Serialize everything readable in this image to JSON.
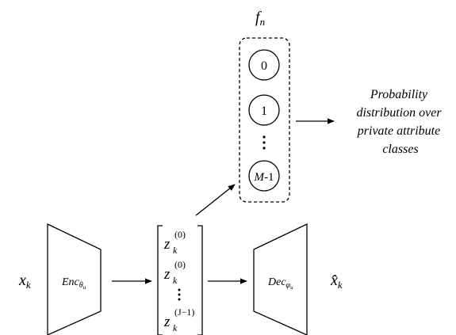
{
  "header": {
    "base": "f",
    "sub": "n"
  },
  "classifier": {
    "nodes": [
      {
        "var": "",
        "rest": "0"
      },
      {
        "var": "",
        "rest": "1"
      },
      {
        "var": "M",
        "rest": "-1"
      }
    ]
  },
  "output": {
    "lines": [
      "Probability",
      "distribution over",
      "private attribute",
      "classes"
    ]
  },
  "input": {
    "base": "x",
    "sub": "k"
  },
  "encoder": {
    "base": "Enc",
    "sub": "θ",
    "subsub": "u"
  },
  "latent": {
    "entries": [
      {
        "base": "z",
        "sub": "k",
        "sup": "(0)"
      },
      {
        "base": "z",
        "sub": "k",
        "sup": "(0)"
      },
      {
        "base": "z",
        "sub": "k",
        "sup": "(J−1)"
      }
    ]
  },
  "decoder": {
    "base": "Dec",
    "sub": "φ",
    "subsub": "u"
  },
  "reconstruction": {
    "base": "x̂",
    "sub": "k"
  }
}
